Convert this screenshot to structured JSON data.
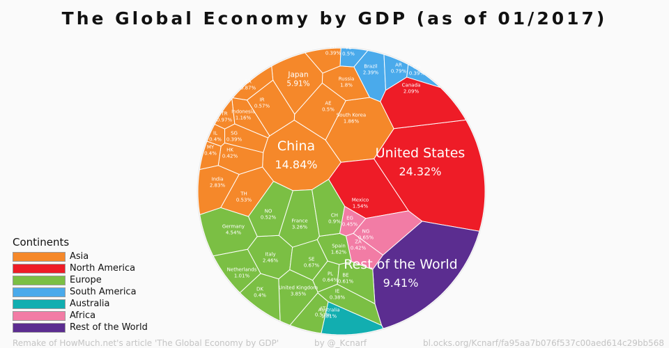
{
  "title": "The Global Economy by GDP (as of 01/2017)",
  "legend": {
    "title": "Continents",
    "items": [
      {
        "label": "Asia",
        "color": "#f5882a"
      },
      {
        "label": "North America",
        "color": "#ee1c27"
      },
      {
        "label": "Europe",
        "color": "#7bbf44"
      },
      {
        "label": "South America",
        "color": "#4aaaeb"
      },
      {
        "label": "Australia",
        "color": "#12aeb0"
      },
      {
        "label": "Africa",
        "color": "#f27ca5"
      },
      {
        "label": "Rest of the World",
        "color": "#5b2d90"
      }
    ]
  },
  "footer": {
    "left": "Remake of HowMuch.net's article 'The Global Economy by GDP'",
    "middle": "by @_Kcnarf",
    "right": "bl.ocks.org/Kcnarf/fa95aa7b076f537c00aed614c29bb568"
  },
  "chart_data": {
    "type": "voronoi-treemap",
    "title": "The Global Economy by GDP (as of 01/2017)",
    "unit": "% of world GDP",
    "data": [
      {
        "name": "United States",
        "continent": "North America",
        "value": 24.32
      },
      {
        "name": "China",
        "continent": "Asia",
        "value": 14.84
      },
      {
        "name": "Rest of the World",
        "continent": "Rest of the World",
        "value": 9.41
      },
      {
        "name": "Japan",
        "continent": "Asia",
        "value": 5.91
      },
      {
        "name": "Germany",
        "continent": "Europe",
        "value": 4.54
      },
      {
        "name": "United Kingdom",
        "continent": "Europe",
        "value": 3.85
      },
      {
        "name": "France",
        "continent": "Europe",
        "value": 3.26
      },
      {
        "name": "India",
        "continent": "Asia",
        "value": 2.83
      },
      {
        "name": "Italy",
        "continent": "Europe",
        "value": 2.46
      },
      {
        "name": "Brazil",
        "continent": "South America",
        "value": 2.39
      },
      {
        "name": "Canada",
        "continent": "North America",
        "value": 2.09
      },
      {
        "name": "South Korea",
        "continent": "Asia",
        "value": 1.86
      },
      {
        "name": "Russia",
        "continent": "Asia",
        "value": 1.8
      },
      {
        "name": "Australia",
        "continent": "Australia",
        "value": 1.81
      },
      {
        "name": "Spain",
        "continent": "Europe",
        "value": 1.62
      },
      {
        "name": "Mexico",
        "continent": "North America",
        "value": 1.54
      },
      {
        "name": "Indonesia",
        "continent": "Asia",
        "value": 1.16
      },
      {
        "name": "Netherlands",
        "continent": "Europe",
        "value": 1.01
      },
      {
        "name": "TR",
        "continent": "Asia",
        "value": 0.97
      },
      {
        "name": "CH",
        "continent": "Europe",
        "value": 0.9
      },
      {
        "name": "SA",
        "continent": "Asia",
        "value": 0.87
      },
      {
        "name": "AR",
        "continent": "South America",
        "value": 0.79
      },
      {
        "name": "SE",
        "continent": "Europe",
        "value": 0.67
      },
      {
        "name": "NG",
        "continent": "Africa",
        "value": 0.65
      },
      {
        "name": "PL",
        "continent": "Europe",
        "value": 0.64
      },
      {
        "name": "BE",
        "continent": "Europe",
        "value": 0.61
      },
      {
        "name": "IR",
        "continent": "Asia",
        "value": 0.57
      },
      {
        "name": "TH",
        "continent": "Asia",
        "value": 0.53
      },
      {
        "name": "NO",
        "continent": "Europe",
        "value": 0.52
      },
      {
        "name": "AT",
        "continent": "Europe",
        "value": 0.51
      },
      {
        "name": "VE",
        "continent": "South America",
        "value": 0.5
      },
      {
        "name": "AE",
        "continent": "Asia",
        "value": 0.5
      },
      {
        "name": "EG",
        "continent": "Africa",
        "value": 0.45
      },
      {
        "name": "HK",
        "continent": "Asia",
        "value": 0.42
      },
      {
        "name": "ZA",
        "continent": "Africa",
        "value": 0.42
      },
      {
        "name": "IL",
        "continent": "Asia",
        "value": 0.4
      },
      {
        "name": "MY",
        "continent": "Asia",
        "value": 0.4
      },
      {
        "name": "DK",
        "continent": "Europe",
        "value": 0.4
      },
      {
        "name": "SG",
        "continent": "Asia",
        "value": 0.39
      },
      {
        "name": "CO",
        "continent": "South America",
        "value": 0.39
      },
      {
        "name": "PH",
        "continent": "Asia",
        "value": 0.39
      },
      {
        "name": "IE",
        "continent": "Europe",
        "value": 0.38
      }
    ]
  }
}
